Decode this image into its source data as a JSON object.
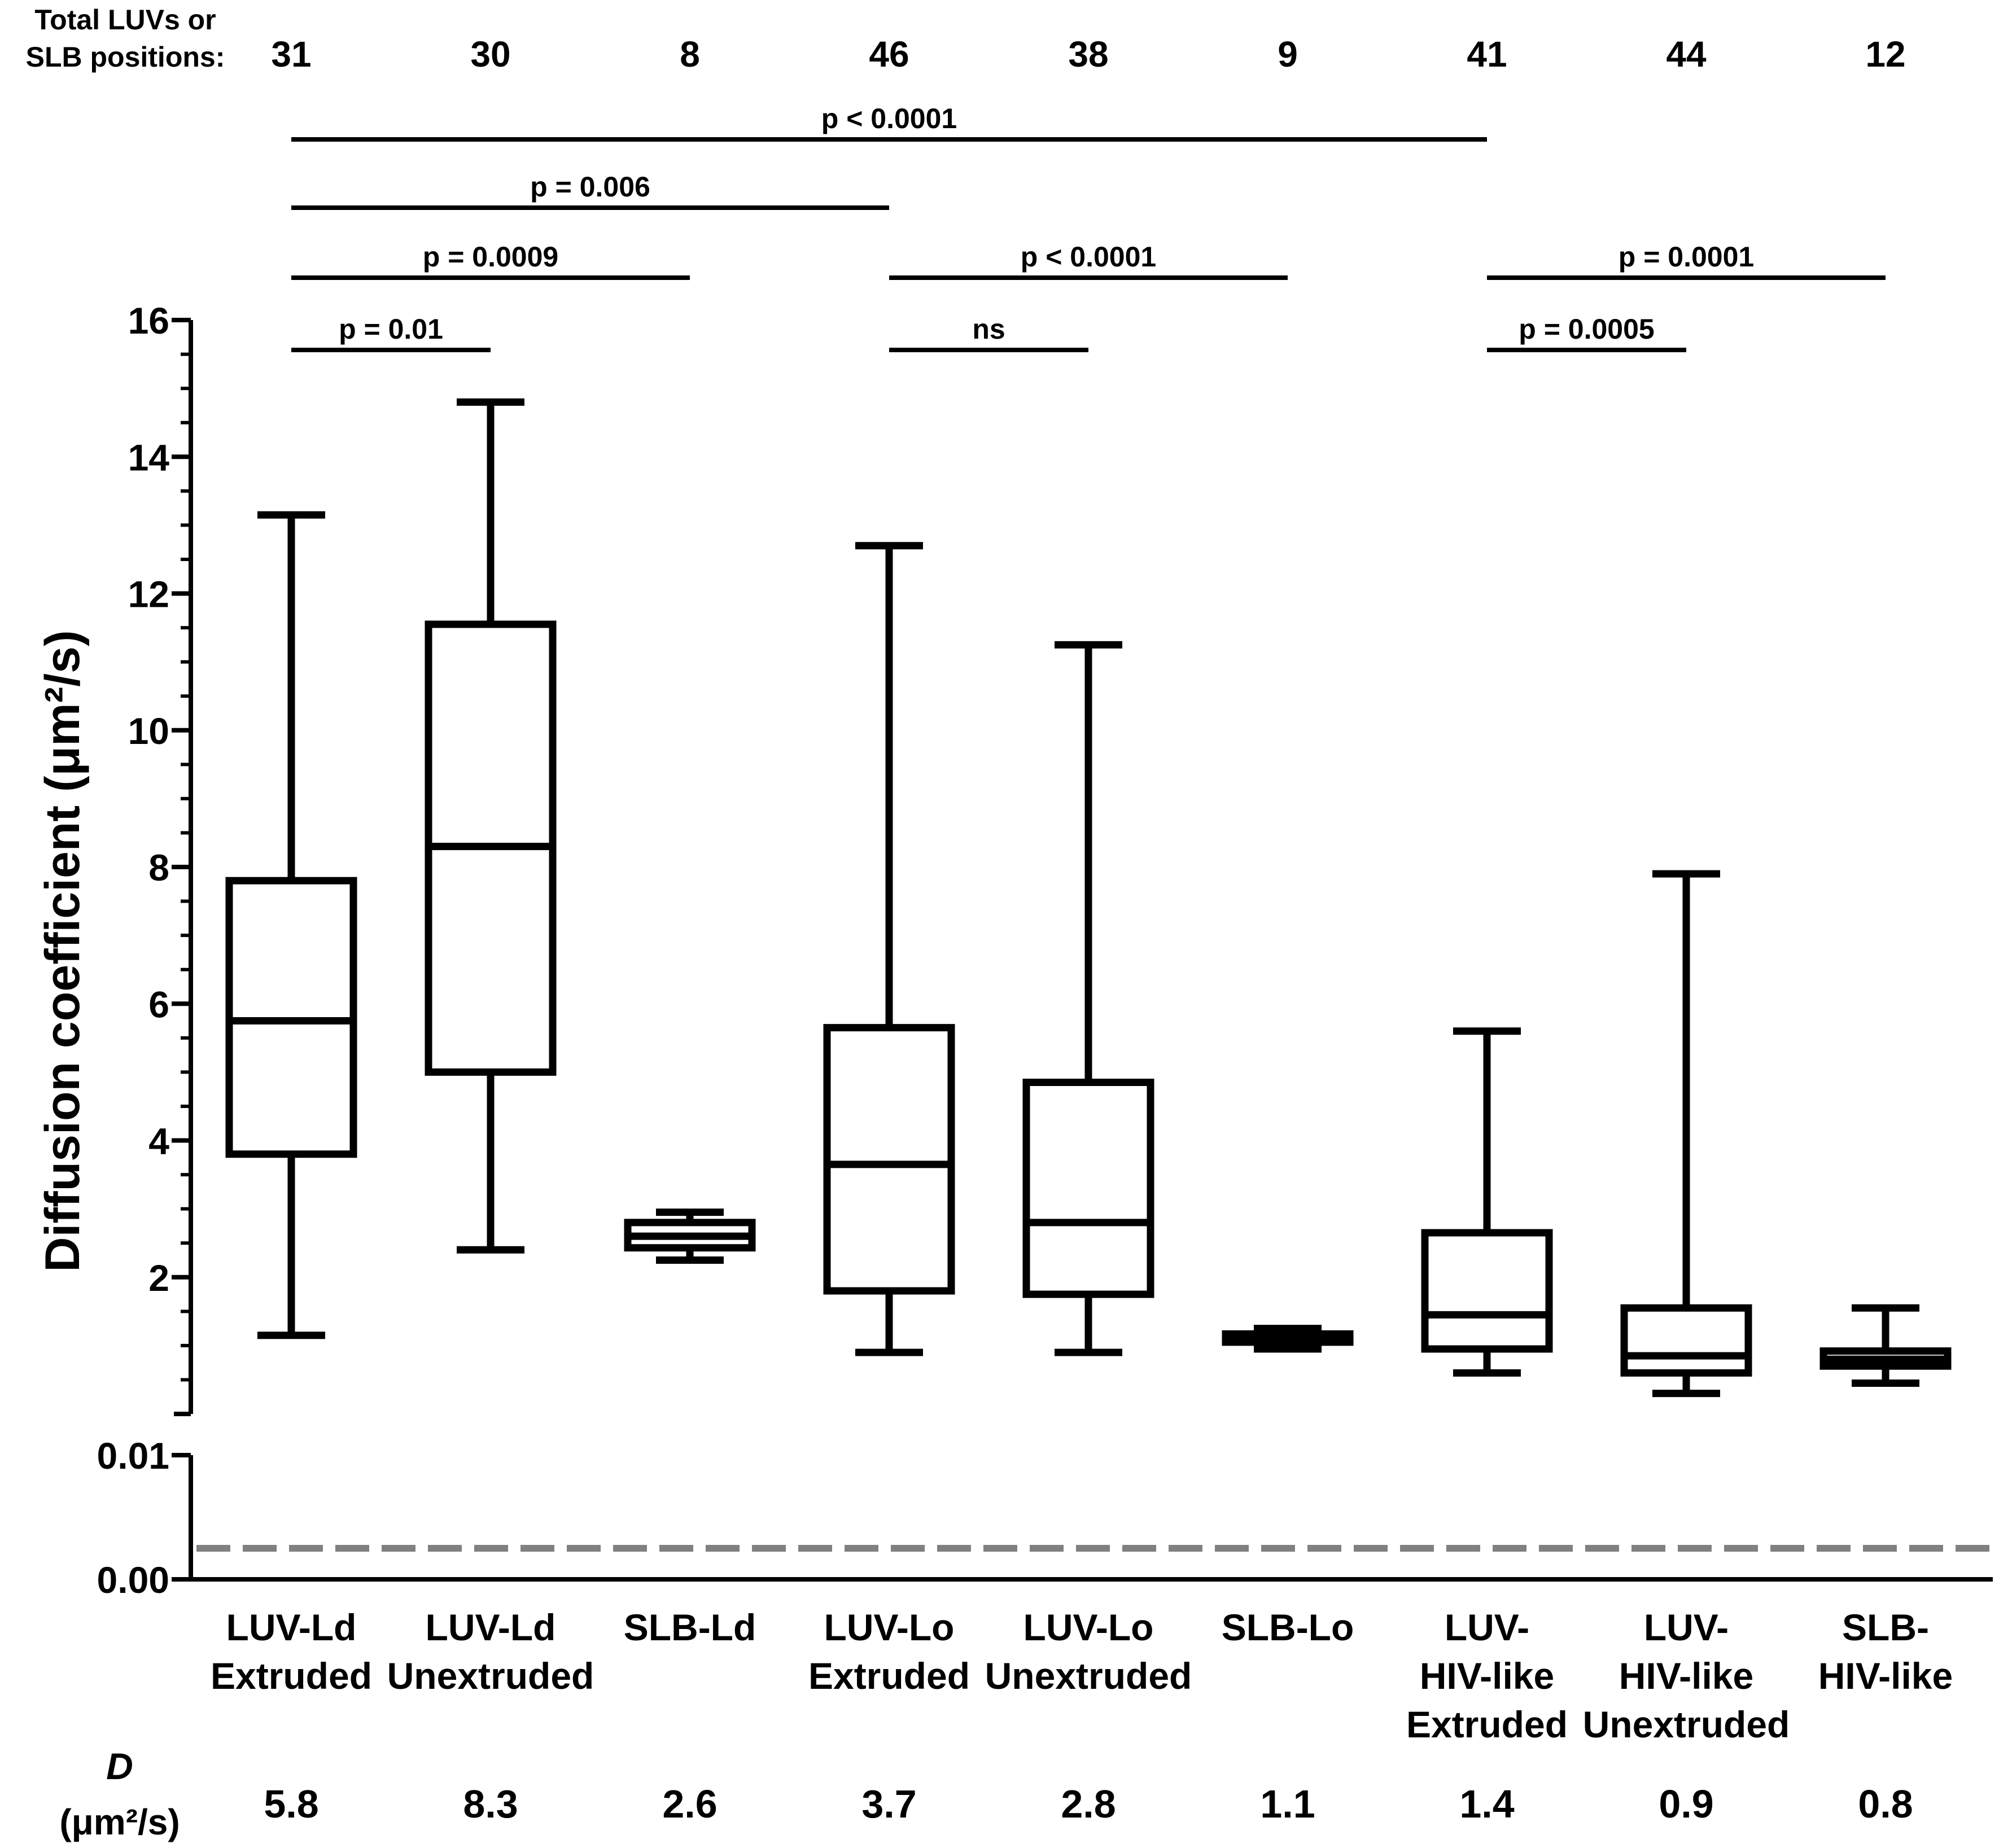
{
  "chart_data": {
    "type": "box",
    "ylabel": "Diffusion coefficient (μm²/s)",
    "upper_axis": {
      "range": [
        0,
        16
      ],
      "major_ticks": [
        2,
        4,
        6,
        8,
        10,
        12,
        14,
        16
      ],
      "minor_step": 0.5
    },
    "lower_axis": {
      "range": [
        0.0,
        0.01
      ],
      "ticks": [
        "0.00",
        "0.01"
      ]
    },
    "dashed_reference": {
      "value": 0.0025,
      "color": "#808080"
    },
    "counts_label": [
      "Total LUVs or",
      "SLB positions:"
    ],
    "categories": [
      {
        "lines": [
          "LUV-Ld",
          "Extruded"
        ],
        "n": "31",
        "D": "5.8",
        "whisker_low": 1.15,
        "q1": 3.8,
        "median": 5.75,
        "q3": 7.8,
        "whisker_high": 13.15
      },
      {
        "lines": [
          "LUV-Ld",
          "Unextruded"
        ],
        "n": "30",
        "D": "8.3",
        "whisker_low": 2.4,
        "q1": 5.0,
        "median": 8.3,
        "q3": 11.55,
        "whisker_high": 14.8
      },
      {
        "lines": [
          "SLB-Ld"
        ],
        "n": "8",
        "D": "2.6",
        "whisker_low": 2.25,
        "q1": 2.43,
        "median": 2.6,
        "q3": 2.8,
        "whisker_high": 2.95
      },
      {
        "lines": [
          "LUV-Lo",
          "Extruded"
        ],
        "n": "46",
        "D": "3.7",
        "whisker_low": 0.9,
        "q1": 1.8,
        "median": 3.65,
        "q3": 5.65,
        "whisker_high": 12.7
      },
      {
        "lines": [
          "LUV-Lo",
          "Unextruded"
        ],
        "n": "38",
        "D": "2.8",
        "whisker_low": 0.9,
        "q1": 1.75,
        "median": 2.8,
        "q3": 4.85,
        "whisker_high": 11.25
      },
      {
        "lines": [
          "SLB-Lo"
        ],
        "n": "9",
        "D": "1.1",
        "whisker_low": 0.95,
        "q1": 1.05,
        "median": 1.1,
        "q3": 1.17,
        "whisker_high": 1.25
      },
      {
        "lines": [
          "LUV-",
          "HIV-like",
          "Extruded"
        ],
        "n": "41",
        "D": "1.4",
        "whisker_low": 0.6,
        "q1": 0.95,
        "median": 1.45,
        "q3": 2.65,
        "whisker_high": 5.6
      },
      {
        "lines": [
          "LUV-",
          "HIV-like",
          "Unextruded"
        ],
        "n": "44",
        "D": "0.9",
        "whisker_low": 0.3,
        "q1": 0.6,
        "median": 0.85,
        "q3": 1.55,
        "whisker_high": 7.9
      },
      {
        "lines": [
          "SLB-",
          "HIV-like"
        ],
        "n": "12",
        "D": "0.8",
        "whisker_low": 0.45,
        "q1": 0.7,
        "median": 0.8,
        "q3": 0.92,
        "whisker_high": 1.55
      }
    ],
    "comparisons": [
      {
        "from": 0,
        "to": 6,
        "label": "p < 0.0001"
      },
      {
        "from": 0,
        "to": 3,
        "label": "p = 0.006"
      },
      {
        "from": 0,
        "to": 2,
        "label": "p = 0.0009"
      },
      {
        "from": 0,
        "to": 1,
        "label": "p = 0.01"
      },
      {
        "from": 3,
        "to": 5,
        "label": "p < 0.0001"
      },
      {
        "from": 3,
        "to": 4,
        "label": "ns"
      },
      {
        "from": 6,
        "to": 8,
        "label": "p = 0.0001"
      },
      {
        "from": 6,
        "to": 7,
        "label": "p = 0.0005"
      }
    ],
    "D_label": "D",
    "D_unit": "(μm²/s)"
  }
}
